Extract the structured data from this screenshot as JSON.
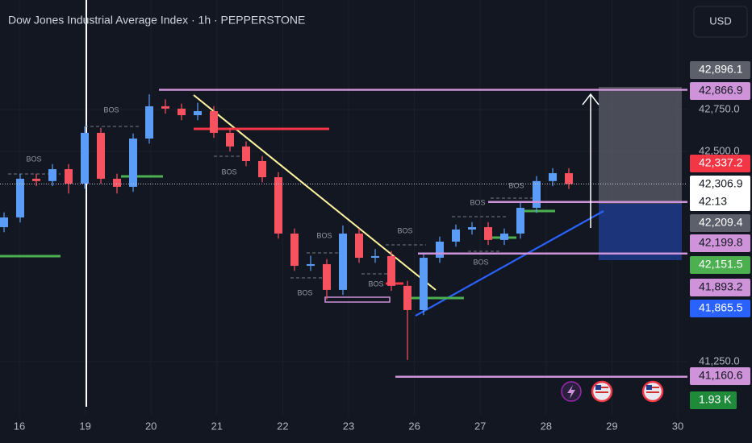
{
  "header": {
    "title": "Dow Jones Industrial Average Index · 1h · PEPPERSTONE",
    "currency": "USD"
  },
  "chart_data": {
    "type": "candlestick",
    "up_color": "#5b9cf6",
    "down_color": "#f7525f",
    "ylim": [
      40934,
      43401
    ],
    "yticks": [
      {
        "value": 42750,
        "label": "42,750.0"
      },
      {
        "value": 42500,
        "label": "42,500.0"
      },
      {
        "value": 41250,
        "label": "41,250.0"
      }
    ],
    "xticks": [
      "16",
      "19",
      "20",
      "21",
      "22",
      "23",
      "26",
      "27",
      "28",
      "29",
      "30"
    ],
    "grid": true,
    "candles": [
      {
        "o": 42050,
        "h": 42138,
        "l": 42020,
        "c": 42108
      },
      {
        "o": 42108,
        "h": 42368,
        "l": 42078,
        "c": 42338
      },
      {
        "o": 42338,
        "h": 42368,
        "l": 42294,
        "c": 42324
      },
      {
        "o": 42324,
        "h": 42425,
        "l": 42294,
        "c": 42395
      },
      {
        "o": 42395,
        "h": 42425,
        "l": 42250,
        "c": 42309
      },
      {
        "o": 42309,
        "h": 42650,
        "l": 42279,
        "c": 42611
      },
      {
        "o": 42611,
        "h": 42641,
        "l": 42308,
        "c": 42338
      },
      {
        "o": 42338,
        "h": 42368,
        "l": 42250,
        "c": 42290
      },
      {
        "o": 42290,
        "h": 42607,
        "l": 42260,
        "c": 42577
      },
      {
        "o": 42577,
        "h": 42840,
        "l": 42547,
        "c": 42769
      },
      {
        "o": 42769,
        "h": 42810,
        "l": 42725,
        "c": 42755
      },
      {
        "o": 42755,
        "h": 42785,
        "l": 42686,
        "c": 42716
      },
      {
        "o": 42716,
        "h": 42790,
        "l": 42686,
        "c": 42740
      },
      {
        "o": 42740,
        "h": 42770,
        "l": 42581,
        "c": 42611
      },
      {
        "o": 42611,
        "h": 42641,
        "l": 42500,
        "c": 42530
      },
      {
        "o": 42530,
        "h": 42560,
        "l": 42413,
        "c": 42443
      },
      {
        "o": 42443,
        "h": 42473,
        "l": 42317,
        "c": 42347
      },
      {
        "o": 42347,
        "h": 42377,
        "l": 41982,
        "c": 42012
      },
      {
        "o": 42012,
        "h": 42042,
        "l": 41790,
        "c": 41820
      },
      {
        "o": 41820,
        "h": 41880,
        "l": 41790,
        "c": 41830
      },
      {
        "o": 41830,
        "h": 41860,
        "l": 41620,
        "c": 41677
      },
      {
        "o": 41677,
        "h": 42060,
        "l": 41647,
        "c": 42012
      },
      {
        "o": 42012,
        "h": 42042,
        "l": 41838,
        "c": 41868
      },
      {
        "o": 41868,
        "h": 41920,
        "l": 41838,
        "c": 41878
      },
      {
        "o": 41878,
        "h": 41908,
        "l": 41671,
        "c": 41701
      },
      {
        "o": 41701,
        "h": 41731,
        "l": 41260,
        "c": 41557
      },
      {
        "o": 41557,
        "h": 41898,
        "l": 41527,
        "c": 41868
      },
      {
        "o": 41868,
        "h": 41994,
        "l": 41838,
        "c": 41964
      },
      {
        "o": 41964,
        "h": 42066,
        "l": 41934,
        "c": 42036
      },
      {
        "o": 42036,
        "h": 42080,
        "l": 42006,
        "c": 42050
      },
      {
        "o": 42050,
        "h": 42080,
        "l": 41944,
        "c": 41974
      },
      {
        "o": 41974,
        "h": 42042,
        "l": 41944,
        "c": 42012
      },
      {
        "o": 42012,
        "h": 42195,
        "l": 41982,
        "c": 42165
      },
      {
        "o": 42165,
        "h": 42354,
        "l": 42135,
        "c": 42324
      },
      {
        "o": 42324,
        "h": 42401,
        "l": 42294,
        "c": 42371
      },
      {
        "o": 42371,
        "h": 42401,
        "l": 42277,
        "c": 42307
      }
    ],
    "price_labels": [
      {
        "value": 42896.1,
        "label": "42,896.1",
        "color": "#5d606b"
      },
      {
        "value": 42866.9,
        "label": "42,866.9",
        "color": "#ce93d8"
      },
      {
        "value": 42337.2,
        "label": "42,337.2",
        "color": "#f23645"
      },
      {
        "value": 42306.9,
        "label": "42,306.9",
        "color": "#ffffff"
      },
      {
        "value": 42209.4,
        "label": "42,209.4",
        "color": "#5d606b"
      },
      {
        "value": 42199.8,
        "label": "42,199.8",
        "color": "#ce93d8"
      },
      {
        "value": 42151.5,
        "label": "42,151.5",
        "color": "#4caf50"
      },
      {
        "value": 41893.2,
        "label": "41,893.2",
        "color": "#ce93d8"
      },
      {
        "value": 41865.5,
        "label": "41,865.5",
        "color": "#2962ff"
      },
      {
        "value": 41160.6,
        "label": "41,160.6",
        "color": "#ce93d8"
      }
    ],
    "countdown": "42:13",
    "volume_label": {
      "value": 1930,
      "label": "1.93 K",
      "color": "#1e8a3a"
    },
    "annotations": [
      "BOS",
      "BOS",
      "BOS",
      "BOS",
      "BOS",
      "BOS",
      "BOS",
      "BOS",
      "BOS",
      "BOS"
    ]
  }
}
